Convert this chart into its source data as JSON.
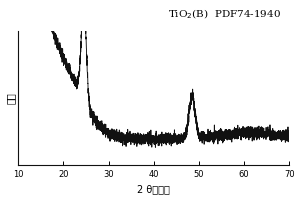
{
  "title_main": "TiO",
  "title_sub": "2",
  "title_rest": "(B)  PDF74-1940",
  "xlabel": "2 θ（度）",
  "ylabel": "强度",
  "xlim": [
    10,
    70
  ],
  "ylim_max": 0.38,
  "x_ticks": [
    10,
    20,
    30,
    40,
    50,
    60,
    70
  ],
  "line_color": "#111111",
  "background_color": "#ffffff",
  "seed": 42,
  "noise_amplitude": 0.008,
  "figsize": [
    3.0,
    2.0
  ],
  "dpi": 100
}
